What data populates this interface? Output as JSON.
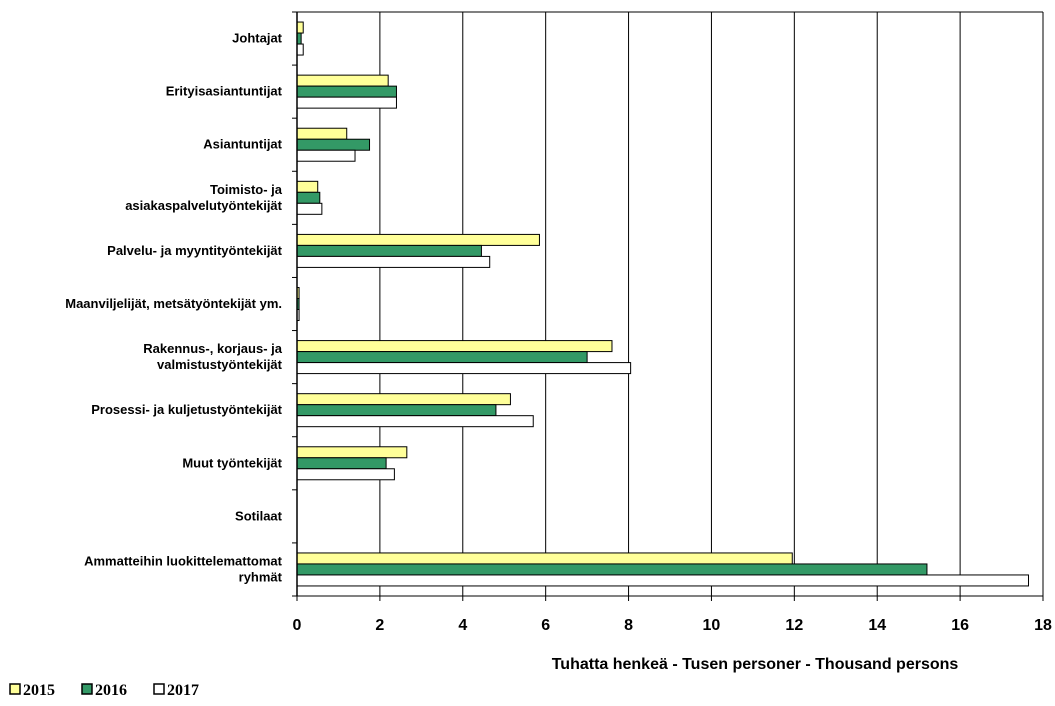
{
  "chart_data": {
    "type": "bar",
    "orientation": "horizontal",
    "title": "",
    "xlabel": "Tuhatta henkeä - Tusen personer  - Thousand persons",
    "ylabel": "",
    "xlim": [
      0,
      18
    ],
    "xticks": [
      0,
      2,
      4,
      6,
      8,
      10,
      12,
      14,
      16,
      18
    ],
    "grid": "vertical",
    "legend_position": "bottom-left",
    "categories": [
      [
        "Johtajat"
      ],
      [
        "Erityisasiantuntijat"
      ],
      [
        "Asiantuntijat"
      ],
      [
        "Toimisto- ja",
        "asiakaspalvelutyöntekijät"
      ],
      [
        "Palvelu- ja myyntityöntekijät"
      ],
      [
        "Maanviljelijät, metsätyöntekijät ym."
      ],
      [
        "Rakennus-, korjaus- ja",
        "valmistustyöntekijät"
      ],
      [
        "Prosessi- ja kuljetustyöntekijät"
      ],
      [
        "Muut työntekijät"
      ],
      [
        "Sotilaat"
      ],
      [
        "Ammatteihin luokittelemattomat",
        "ryhmät"
      ]
    ],
    "series": [
      {
        "name": "2015",
        "color": "#ffff99",
        "values": [
          0.15,
          2.2,
          1.2,
          0.5,
          5.85,
          0.05,
          7.6,
          5.15,
          2.65,
          0,
          11.95
        ]
      },
      {
        "name": "2016",
        "color": "#339966",
        "values": [
          0.1,
          2.4,
          1.75,
          0.55,
          4.45,
          0.05,
          7.0,
          4.8,
          2.15,
          0,
          15.2
        ]
      },
      {
        "name": "2017",
        "color": "#ffffff",
        "values": [
          0.15,
          2.4,
          1.4,
          0.6,
          4.65,
          0.05,
          8.05,
          5.7,
          2.35,
          0,
          17.65
        ]
      }
    ]
  }
}
